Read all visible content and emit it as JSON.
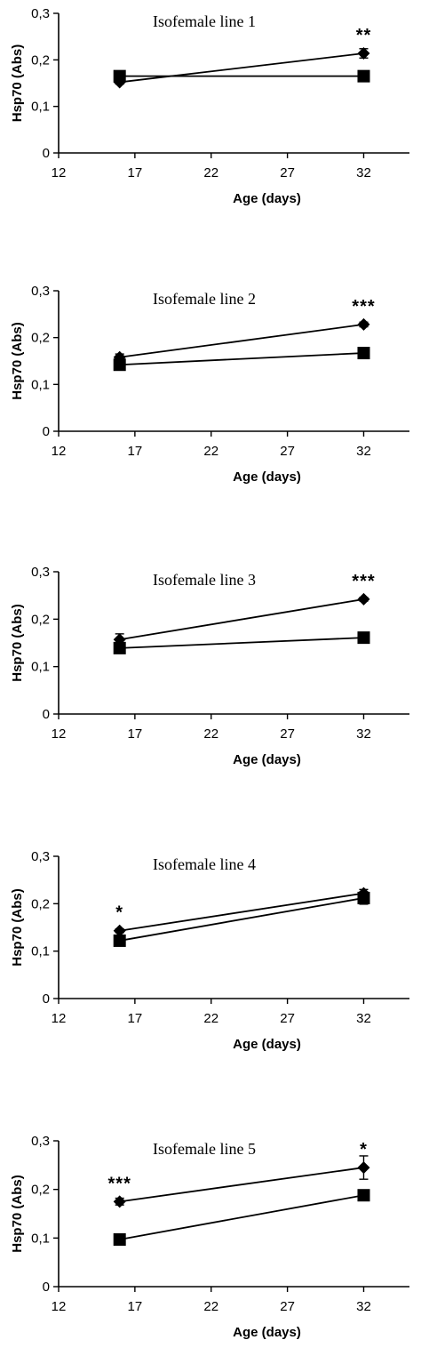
{
  "chart_data": [
    {
      "type": "line",
      "title": "Isofemale line 1",
      "xlabel": "Age (days)",
      "ylabel": "Hsp70 (Abs)",
      "xlim": [
        12,
        35
      ],
      "ylim": [
        0,
        0.3
      ],
      "xticks": [
        "12",
        "17",
        "22",
        "27",
        "32"
      ],
      "yticks": [
        "0",
        "0,1",
        "0,2",
        "0,3"
      ],
      "series": [
        {
          "marker": "diamond",
          "x": [
            16,
            32
          ],
          "values": [
            0.152,
            0.214
          ],
          "err": [
            0.004,
            0.01
          ]
        },
        {
          "marker": "square",
          "x": [
            16,
            32
          ],
          "values": [
            0.165,
            0.165
          ],
          "err": [
            0.004,
            0.004
          ]
        }
      ],
      "annotations": [
        {
          "x": 32,
          "y": 0.214,
          "text": "**"
        }
      ]
    },
    {
      "type": "line",
      "title": "Isofemale line 2",
      "xlabel": "Age (days)",
      "ylabel": "Hsp70 (Abs)",
      "xlim": [
        12,
        35
      ],
      "ylim": [
        0,
        0.3
      ],
      "xticks": [
        "12",
        "17",
        "22",
        "27",
        "32"
      ],
      "yticks": [
        "0",
        "0,1",
        "0,2",
        "0,3"
      ],
      "series": [
        {
          "marker": "diamond",
          "x": [
            16,
            32
          ],
          "values": [
            0.158,
            0.228
          ],
          "err": [
            0.007,
            0.005
          ]
        },
        {
          "marker": "square",
          "x": [
            16,
            32
          ],
          "values": [
            0.142,
            0.167
          ],
          "err": [
            0.004,
            0.004
          ]
        }
      ],
      "annotations": [
        {
          "x": 32,
          "y": 0.228,
          "text": "***"
        }
      ]
    },
    {
      "type": "line",
      "title": "Isofemale line 3",
      "xlabel": "Age (days)",
      "ylabel": "Hsp70 (Abs)",
      "xlim": [
        12,
        35
      ],
      "ylim": [
        0,
        0.3
      ],
      "xticks": [
        "12",
        "17",
        "22",
        "27",
        "32"
      ],
      "yticks": [
        "0",
        "0,1",
        "0,2",
        "0,3"
      ],
      "series": [
        {
          "marker": "diamond",
          "x": [
            16,
            32
          ],
          "values": [
            0.157,
            0.242
          ],
          "err": [
            0.012,
            0.004
          ]
        },
        {
          "marker": "square",
          "x": [
            16,
            32
          ],
          "values": [
            0.139,
            0.161
          ],
          "err": [
            0.004,
            0.004
          ]
        }
      ],
      "annotations": [
        {
          "x": 32,
          "y": 0.242,
          "text": "***"
        }
      ]
    },
    {
      "type": "line",
      "title": "Isofemale line 4",
      "xlabel": "Age (days)",
      "ylabel": "Hsp70 (Abs)",
      "xlim": [
        12,
        35
      ],
      "ylim": [
        0,
        0.3
      ],
      "xticks": [
        "12",
        "17",
        "22",
        "27",
        "32"
      ],
      "yticks": [
        "0",
        "0,1",
        "0,2",
        "0,3"
      ],
      "series": [
        {
          "marker": "diamond",
          "x": [
            16,
            32
          ],
          "values": [
            0.143,
            0.222
          ],
          "err": [
            0.004,
            0.008
          ]
        },
        {
          "marker": "square",
          "x": [
            16,
            32
          ],
          "values": [
            0.122,
            0.212
          ],
          "err": [
            0.004,
            0.013
          ]
        }
      ],
      "annotations": [
        {
          "x": 16,
          "y": 0.143,
          "text": "*"
        }
      ]
    },
    {
      "type": "line",
      "title": "Isofemale line 5",
      "xlabel": "Age (days)",
      "ylabel": "Hsp70 (Abs)",
      "xlim": [
        12,
        35
      ],
      "ylim": [
        0,
        0.3
      ],
      "xticks": [
        "12",
        "17",
        "22",
        "27",
        "32"
      ],
      "yticks": [
        "0",
        "0,1",
        "0,2",
        "0,3"
      ],
      "series": [
        {
          "marker": "diamond",
          "x": [
            16,
            32
          ],
          "values": [
            0.175,
            0.245
          ],
          "err": [
            0.007,
            0.024
          ]
        },
        {
          "marker": "square",
          "x": [
            16,
            32
          ],
          "values": [
            0.097,
            0.188
          ],
          "err": [
            0.004,
            0.004
          ]
        }
      ],
      "annotations": [
        {
          "x": 16,
          "y": 0.175,
          "text": "***"
        },
        {
          "x": 32,
          "y": 0.245,
          "text": "*"
        }
      ]
    }
  ]
}
